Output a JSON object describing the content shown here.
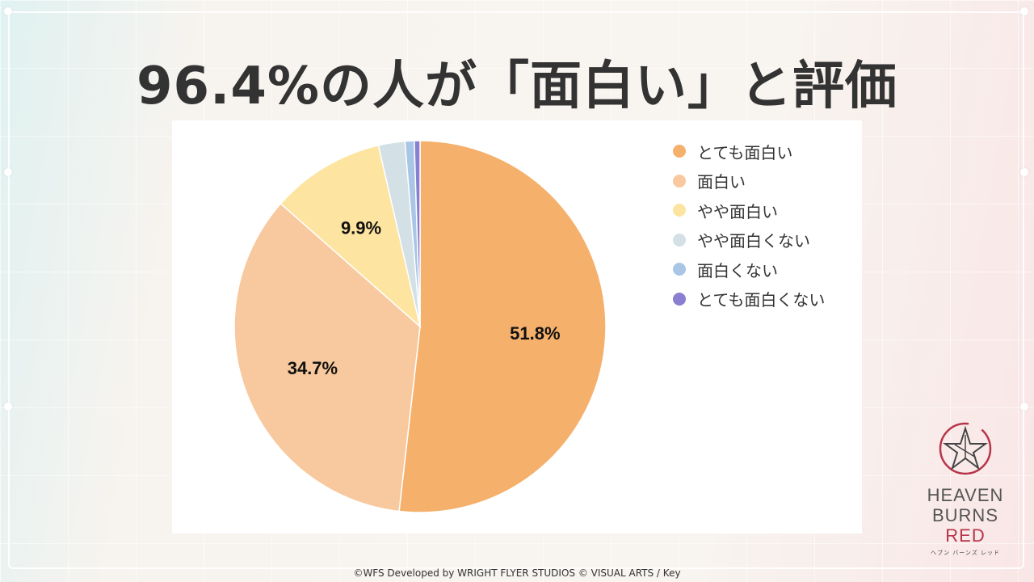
{
  "title": "96.4%の人が「面白い」と評価",
  "chart_data": {
    "type": "pie",
    "title": "",
    "slices": [
      {
        "name": "とても面白い",
        "value": 51.8,
        "label": "51.8%",
        "color": "#f5b06c"
      },
      {
        "name": "面白い",
        "value": 34.7,
        "label": "34.7%",
        "color": "#f8c99e"
      },
      {
        "name": "やや面白い",
        "value": 9.9,
        "label": "9.9%",
        "color": "#fde4a0"
      },
      {
        "name": "やや面白くない",
        "value": 2.3,
        "label": "",
        "color": "#d3e0e6"
      },
      {
        "name": "面白くない",
        "value": 0.8,
        "label": "",
        "color": "#a9c6e6"
      },
      {
        "name": "とても面白くない",
        "value": 0.5,
        "label": "",
        "color": "#8a7ed0"
      }
    ],
    "legend_position": "top-right"
  },
  "logo": {
    "line1": "HEAVEN",
    "line2": "BURNS",
    "line3": "RED",
    "kana": "ヘブン バーンズ レッド",
    "accent_color": "#b8344a",
    "icon": "star-emblem-icon"
  },
  "copyright": "©WFS Developed by WRIGHT FLYER STUDIOS © VISUAL ARTS / Key"
}
